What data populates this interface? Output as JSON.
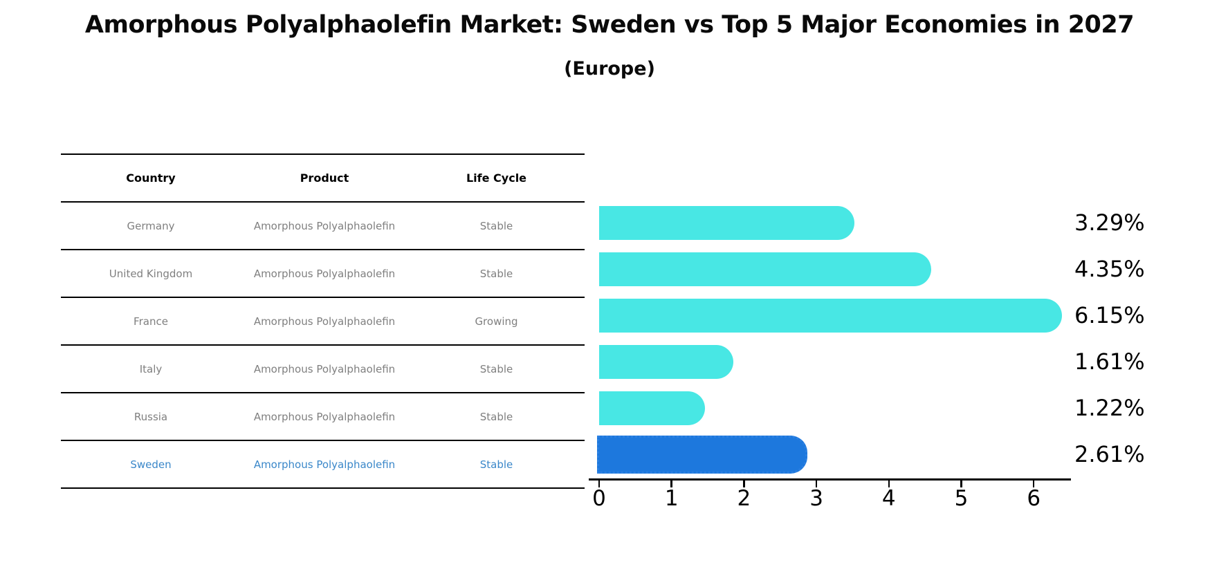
{
  "title": "Amorphous Polyalphaolefin Market: Sweden vs Top 5 Major Economies in 2027",
  "subtitle": "(Europe)",
  "colors": {
    "bar": "#48e7e4",
    "highlight_bar": "#1d78dd",
    "highlight_text": "#3a87c9",
    "muted_text": "#7f7f7f",
    "axis": "#000000"
  },
  "table": {
    "headers": [
      "Country",
      "Product",
      "Life Cycle"
    ],
    "rows": [
      {
        "country": "Germany",
        "product": "Amorphous Polyalphaolefin",
        "life_cycle": "Stable",
        "highlight": false
      },
      {
        "country": "United Kingdom",
        "product": "Amorphous Polyalphaolefin",
        "life_cycle": "Stable",
        "highlight": false
      },
      {
        "country": "France",
        "product": "Amorphous Polyalphaolefin",
        "life_cycle": "Growing",
        "highlight": false
      },
      {
        "country": "Italy",
        "product": "Amorphous Polyalphaolefin",
        "life_cycle": "Stable",
        "highlight": false
      },
      {
        "country": "Russia",
        "product": "Amorphous Polyalphaolefin",
        "life_cycle": "Stable",
        "highlight": false
      },
      {
        "country": "Sweden",
        "product": "Amorphous Polyalphaolefin",
        "life_cycle": "Stable",
        "highlight": true
      }
    ]
  },
  "chart_data": {
    "type": "bar",
    "orientation": "horizontal",
    "title": "Amorphous Polyalphaolefin Market: Sweden vs Top 5 Major Economies in 2027 (Europe)",
    "categories": [
      "Germany",
      "United Kingdom",
      "France",
      "Italy",
      "Russia",
      "Sweden"
    ],
    "values": [
      3.29,
      4.35,
      6.15,
      1.61,
      1.22,
      2.61
    ],
    "value_labels": [
      "3.29%",
      "4.35%",
      "6.15%",
      "1.61%",
      "1.22%",
      "2.61%"
    ],
    "highlight_index": 5,
    "xlabel": "",
    "ylabel": "",
    "xlim": [
      0,
      6.5
    ],
    "xticks": [
      "0",
      "1",
      "2",
      "3",
      "4",
      "5",
      "6"
    ],
    "grid": false,
    "legend": "none",
    "value_label_position": "right-of-plot"
  }
}
